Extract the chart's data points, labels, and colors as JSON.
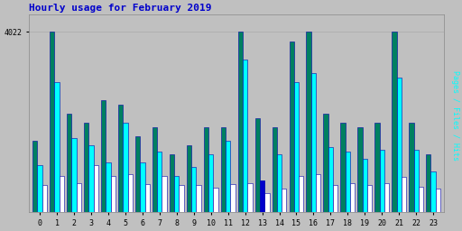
{
  "title": "Hourly usage for February 2019",
  "ytick_label": "4022",
  "hours": [
    0,
    1,
    2,
    3,
    4,
    5,
    6,
    7,
    8,
    9,
    10,
    11,
    12,
    13,
    14,
    15,
    16,
    17,
    18,
    19,
    20,
    21,
    22,
    23
  ],
  "hits": [
    1600,
    4022,
    2200,
    2000,
    2500,
    2400,
    1700,
    1900,
    1300,
    1500,
    1900,
    1900,
    4022,
    2100,
    1900,
    3800,
    4022,
    2200,
    2000,
    1900,
    2000,
    4022,
    2000,
    1300
  ],
  "files": [
    1050,
    2900,
    1650,
    1500,
    1100,
    2000,
    1100,
    1350,
    800,
    1000,
    1300,
    1600,
    3400,
    700,
    1300,
    2900,
    3100,
    1450,
    1350,
    1200,
    1400,
    3000,
    1400,
    900
  ],
  "pages": [
    600,
    800,
    650,
    1050,
    800,
    850,
    630,
    800,
    600,
    600,
    550,
    630,
    650,
    420,
    530,
    800,
    850,
    600,
    650,
    600,
    650,
    780,
    560,
    530
  ],
  "color_hits": "#008060",
  "color_files": "#00FFFF",
  "color_pages": "#FFFFFF",
  "color_edge": "#0000AA",
  "color_blue13": "#0000CC",
  "bg_color": "#C0C0C0",
  "title_color": "#0000CC",
  "grid_color": "#AAAAAA",
  "bar_width": 0.28,
  "ylim": [
    0,
    4400
  ],
  "figsize": [
    5.12,
    2.56
  ],
  "dpi": 100
}
